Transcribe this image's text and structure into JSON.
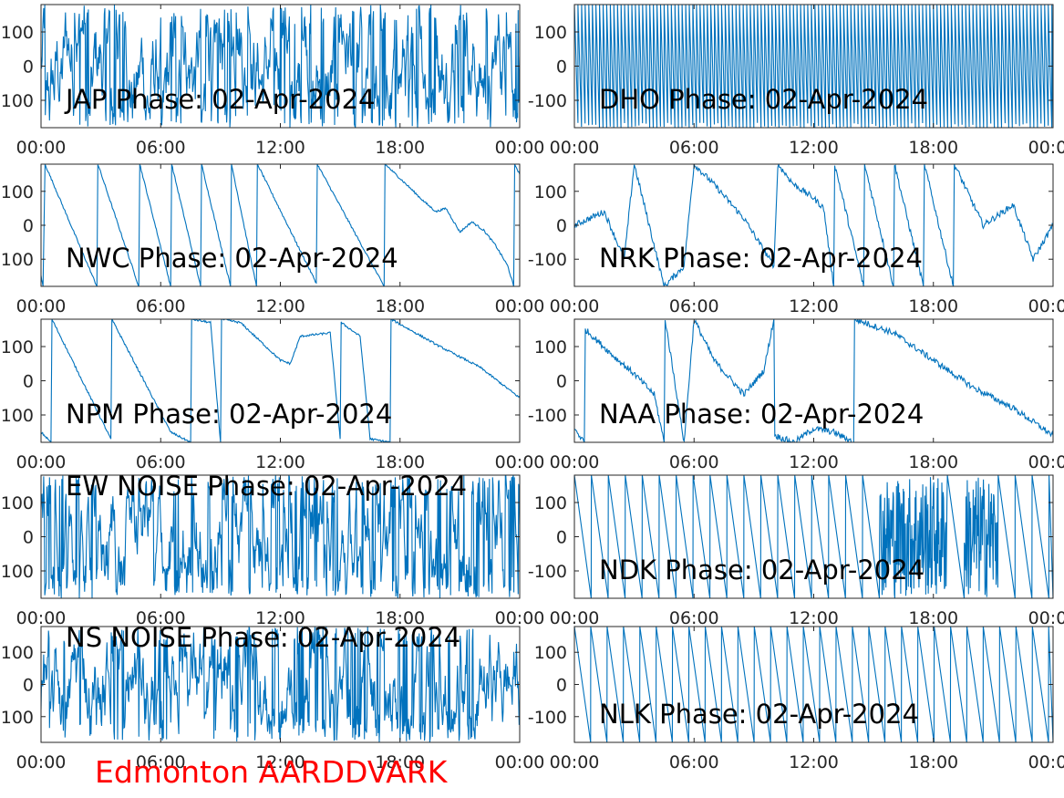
{
  "footer": {
    "text": "Edmonton AARDDVARK",
    "color": "#ff0000"
  },
  "chart_data": {
    "type": "line",
    "line_color": "#0072bd",
    "layout": "5 rows x 2 columns of phase panels",
    "x_ticks": [
      "00:00",
      "06:00",
      "12:00",
      "18:00",
      "00:00"
    ],
    "y_ticks": [
      100,
      0,
      -100
    ],
    "ylim": [
      -180,
      180
    ],
    "xlim_hours": [
      0,
      24
    ],
    "grid": false,
    "panels": [
      {
        "label": "JAP Phase: 02-Apr-2024",
        "style": "dense_noise",
        "period_hours": 0,
        "y0": 0,
        "events": []
      },
      {
        "label": "DHO Phase: 02-Apr-2024",
        "style": "fast_wraps",
        "period_hours": 0.18,
        "y0": 0,
        "events": []
      },
      {
        "label": "NWC Phase: 02-Apr-2024",
        "style": "drift_wraps",
        "points": [
          [
            0,
            -150
          ],
          [
            0.1,
            -180
          ],
          [
            0.2,
            180
          ],
          [
            2.8,
            -180
          ],
          [
            2.85,
            180
          ],
          [
            4.9,
            -180
          ],
          [
            4.95,
            180
          ],
          [
            6.5,
            -180
          ],
          [
            6.55,
            180
          ],
          [
            8.0,
            -180
          ],
          [
            8.05,
            180
          ],
          [
            9.5,
            -180
          ],
          [
            9.55,
            180
          ],
          [
            10.8,
            -180
          ],
          [
            10.85,
            180
          ],
          [
            13.8,
            -170
          ],
          [
            13.85,
            180
          ],
          [
            17.2,
            -180
          ],
          [
            17.25,
            180
          ],
          [
            18.5,
            110
          ],
          [
            19.2,
            70
          ],
          [
            19.8,
            40
          ],
          [
            20.3,
            50
          ],
          [
            21.0,
            -20
          ],
          [
            21.6,
            10
          ],
          [
            22.2,
            -15
          ],
          [
            22.8,
            -60
          ],
          [
            23.4,
            -120
          ],
          [
            23.7,
            -180
          ],
          [
            23.75,
            180
          ],
          [
            24,
            150
          ]
        ]
      },
      {
        "label": "NRK Phase: 02-Apr-2024",
        "style": "mixed",
        "points": [
          [
            0,
            0
          ],
          [
            1.5,
            40
          ],
          [
            2.5,
            -100
          ],
          [
            3.0,
            180
          ],
          [
            4.5,
            -180
          ],
          [
            5.5,
            -120
          ],
          [
            6.0,
            180
          ],
          [
            7.0,
            120
          ],
          [
            8.5,
            20
          ],
          [
            10.0,
            -120
          ],
          [
            10.2,
            180
          ],
          [
            11.0,
            120
          ],
          [
            12.0,
            80
          ],
          [
            12.5,
            50
          ],
          [
            13.0,
            -180
          ],
          [
            13.05,
            180
          ],
          [
            14.5,
            -180
          ],
          [
            14.55,
            180
          ],
          [
            16.0,
            -180
          ],
          [
            16.05,
            180
          ],
          [
            17.5,
            -180
          ],
          [
            17.55,
            180
          ],
          [
            19.0,
            -180
          ],
          [
            19.05,
            180
          ],
          [
            20.5,
            0
          ],
          [
            22.0,
            60
          ],
          [
            23.0,
            -100
          ],
          [
            24,
            0
          ]
        ]
      },
      {
        "label": "NPM Phase: 02-Apr-2024",
        "style": "drift_wraps",
        "points": [
          [
            0,
            -150
          ],
          [
            0.5,
            -180
          ],
          [
            0.55,
            180
          ],
          [
            3.5,
            -170
          ],
          [
            3.55,
            180
          ],
          [
            6.5,
            -150
          ],
          [
            7.5,
            -180
          ],
          [
            7.55,
            180
          ],
          [
            8.5,
            170
          ],
          [
            9.0,
            -180
          ],
          [
            9.05,
            180
          ],
          [
            10.0,
            170
          ],
          [
            12.0,
            60
          ],
          [
            12.5,
            50
          ],
          [
            13.0,
            130
          ],
          [
            14.5,
            140
          ],
          [
            15.0,
            -170
          ],
          [
            15.05,
            170
          ],
          [
            16.0,
            130
          ],
          [
            16.5,
            -170
          ],
          [
            17.5,
            -180
          ],
          [
            17.55,
            180
          ],
          [
            20.0,
            100
          ],
          [
            22.0,
            40
          ],
          [
            24,
            -50
          ]
        ]
      },
      {
        "label": "NAA Phase: 02-Apr-2024",
        "style": "mixed",
        "points": [
          [
            0,
            -140
          ],
          [
            0.5,
            -180
          ],
          [
            0.55,
            150
          ],
          [
            2.0,
            70
          ],
          [
            3.0,
            20
          ],
          [
            4.0,
            -40
          ],
          [
            4.5,
            -180
          ],
          [
            4.55,
            180
          ],
          [
            5.5,
            -180
          ],
          [
            6.0,
            180
          ],
          [
            7.0,
            60
          ],
          [
            8.5,
            -40
          ],
          [
            9.5,
            30
          ],
          [
            10.0,
            180
          ],
          [
            10.05,
            -160
          ],
          [
            11.0,
            -180
          ],
          [
            12.0,
            -140
          ],
          [
            13.0,
            -150
          ],
          [
            14.0,
            -180
          ],
          [
            14.05,
            180
          ],
          [
            16.0,
            140
          ],
          [
            18.0,
            60
          ],
          [
            20.0,
            -20
          ],
          [
            22.0,
            -80
          ],
          [
            24,
            -160
          ]
        ]
      },
      {
        "label": "EW NOISE Phase: 02-Apr-2024",
        "style": "dense_noise",
        "period_hours": 0,
        "y0": 0,
        "events": []
      },
      {
        "label": "NDK Phase: 02-Apr-2024",
        "style": "slow_wraps_noisy",
        "period_hours": 0.85,
        "noise_ranges": [
          [
            15.0,
            18.0
          ],
          [
            19.5,
            21.0
          ]
        ]
      },
      {
        "label": "NS NOISE Phase: 02-Apr-2024",
        "style": "dense_noise",
        "period_hours": 0,
        "y0": 0,
        "events": []
      },
      {
        "label": "NLK Phase: 02-Apr-2024",
        "style": "slow_wraps",
        "period_hours": 0.82
      }
    ]
  }
}
